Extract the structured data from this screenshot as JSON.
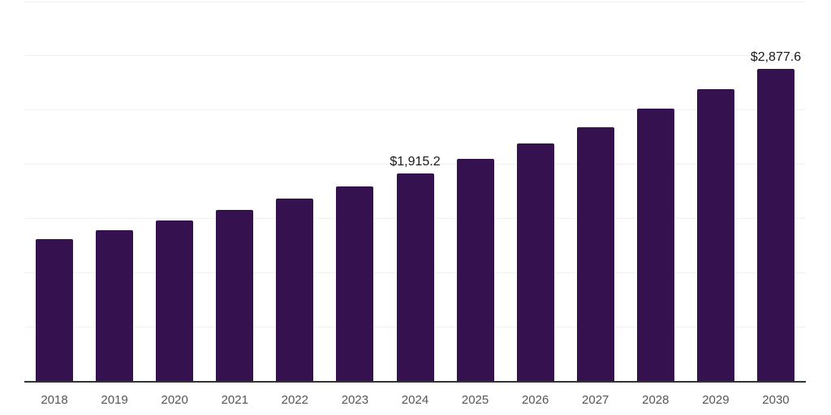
{
  "chart_data": {
    "type": "bar",
    "title": "",
    "xlabel": "",
    "ylabel": "",
    "categories": [
      "2018",
      "2019",
      "2020",
      "2021",
      "2022",
      "2023",
      "2024",
      "2025",
      "2026",
      "2027",
      "2028",
      "2029",
      "2030"
    ],
    "values": [
      1306,
      1393,
      1480,
      1576,
      1681,
      1794,
      1915.2,
      2046,
      2192,
      2343,
      2510,
      2690,
      2877.6
    ],
    "bar_labels": [
      "",
      "",
      "",
      "",
      "",
      "",
      "$1,915.2",
      "",
      "",
      "",
      "",
      "",
      "$2,877.6"
    ],
    "ylim": [
      0,
      3500
    ],
    "gridline_interval": 500,
    "grid": "horizontal-only",
    "y_axis_tick_labels": "none",
    "legend": "none",
    "colors": {
      "bar": "#361150",
      "axis_line": "#333333",
      "gridline": "#f2f2f2",
      "tick_label": "#555555",
      "data_label": "#1a1a1a",
      "background": "#ffffff"
    }
  }
}
